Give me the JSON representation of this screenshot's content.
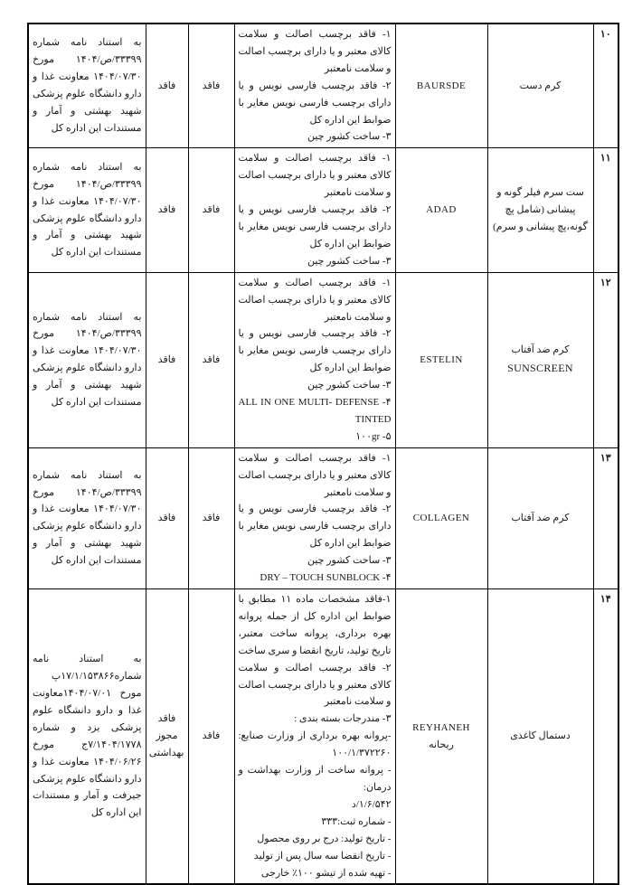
{
  "table": {
    "rows": [
      {
        "no": "۱۰",
        "product_fa": "کرم دست",
        "product_en": "",
        "brand_en": "BAURSDE",
        "brand_fa": "",
        "reasons": "۱- فاقد برچسب اصالت و سلامت کالای معتبر و یا دارای برچسب اصالت و سلامت نامعتبر\n۲- فاقد برچسب فارسی نویس و یا دارای برچسب فارسی نویس مغایر با ضوابط این اداره کل\n۳- ساخت کشور چین",
        "status_a": "فاقد",
        "status_b": "فاقد",
        "reference": "به استناد نامه شماره ۳۳۳۹۹/ص/۱۴۰۴ مورخ ۱۴۰۴/۰۷/۳۰ معاونت غذا و دارو دانشگاه علوم پزشکی شهید بهشتی و آمار و مستندات این اداره کل"
      },
      {
        "no": "۱۱",
        "product_fa": "ست سرم فیلر گونه و پیشانی (شامل پچ گونه،پچ پیشانی و سرم)",
        "product_en": "",
        "brand_en": "ADAD",
        "brand_fa": "",
        "reasons": "۱- فاقد برچسب اصالت و سلامت کالای معتبر و یا دارای برچسب اصالت و سلامت نامعتبر\n۲- فاقد برچسب فارسی نویس و یا دارای برچسب فارسی نویس مغایر با ضوابط این اداره کل\n۳- ساخت کشور چین",
        "status_a": "فاقد",
        "status_b": "فاقد",
        "reference": "به استناد نامه شماره ۳۳۳۹۹/ص/۱۴۰۴ مورخ ۱۴۰۴/۰۷/۳۰ معاونت غذا و دارو دانشگاه علوم پزشکی شهید بهشتی و آمار و مستندات این اداره کل"
      },
      {
        "no": "۱۲",
        "product_fa": "کرم ضد آفتاب",
        "product_en": "SUNSCREEN",
        "brand_en": "ESTELIN",
        "brand_fa": "",
        "reasons": "۱- فاقد برچسب اصالت و سلامت کالای معتبر و یا دارای برچسب اصالت و سلامت نامعتبر\n۲- فاقد برچسب فارسی نویس و یا دارای برچسب فارسی نویس مغایر با ضوابط این اداره کل\n۳- ساخت کشور چین\n۴- ALL IN ONE MULTI- DEFENSE TINTED\n۵- ۱۰۰gr",
        "status_a": "فاقد",
        "status_b": "فاقد",
        "reference": "به استناد نامه شماره ۳۳۳۹۹/ص/۱۴۰۴ مورخ ۱۴۰۴/۰۷/۳۰ معاونت غذا و دارو دانشگاه علوم پزشکی شهید بهشتی و آمار و مستندات این اداره کل"
      },
      {
        "no": "۱۳",
        "product_fa": "کرم ضد آفتاب",
        "product_en": "",
        "brand_en": "COLLAGEN",
        "brand_fa": "",
        "reasons": "۱- فاقد برچسب اصالت و سلامت کالای معتبر و یا دارای برچسب اصالت و سلامت نامعتبر\n۲- فاقد برچسب فارسی نویس و یا دارای برچسب فارسی نویس مغایر با ضوابط این اداره کل\n۳- ساخت کشور چین\n۴- DRY – TOUCH SUNBLOCK",
        "status_a": "فاقد",
        "status_b": "فاقد",
        "reference": "به استناد نامه شماره ۳۳۳۹۹/ص/۱۴۰۴ مورخ ۱۴۰۴/۰۷/۳۰ معاونت غذا و دارو دانشگاه علوم پزشکی شهید بهشتی و آمار و مستندات این اداره کل"
      },
      {
        "no": "۱۴",
        "product_fa": "دستمال کاغذی",
        "product_en": "",
        "brand_en": "REYHANEH",
        "brand_fa": "ریحانه",
        "reasons": "۱-فاقد مشخصات ماده ۱۱ مطابق با ضوابط این اداره کل از جمله پروانه بهره برداری، پروانه ساخت معتبر، تاریخ تولید، تاریخ انقضا و سری ساخت\n۲- فاقد برچسب اصالت و سلامت کالای معتبر و یا دارای برچسب اصالت و سلامت نامعتبر\n۳- مندرجات بسته بندی :\n-پروانه بهره برداری از وزارت صنایع: ۱۰۰/۱/۳۷۲۲۶۰\n- پروانه ساخت از وزارت بهداشت و درمان:\n۱/۶/۵۴۲/د\n- شماره ثبت:۳۳۳\n- تاریخ تولید: درج بر روی محصول\n- تاریخ انقضا سه سال پس از تولید\n- تهیه شده از تیشو ۱۰۰٪ خارجی",
        "status_a": "فاقد",
        "status_b": "فاقد مجوز بهداشتی",
        "reference": "به استناد نامه شماره۱۷/۱/۱۵۳۸۶۶پ مورخ ۱۴۰۴/۰۷/۰۱معاونت غذا و دارو دانشگاه علوم پزشکی یزد و شماره ۷/۱۴۰۴/۱۷۷۸ج مورخ ۱۴۰۴/۰۶/۲۶ معاونت غذا و دارو دانشگاه علوم پزشکی جیرفت و آمار و مستندات این اداره کل"
      }
    ]
  }
}
